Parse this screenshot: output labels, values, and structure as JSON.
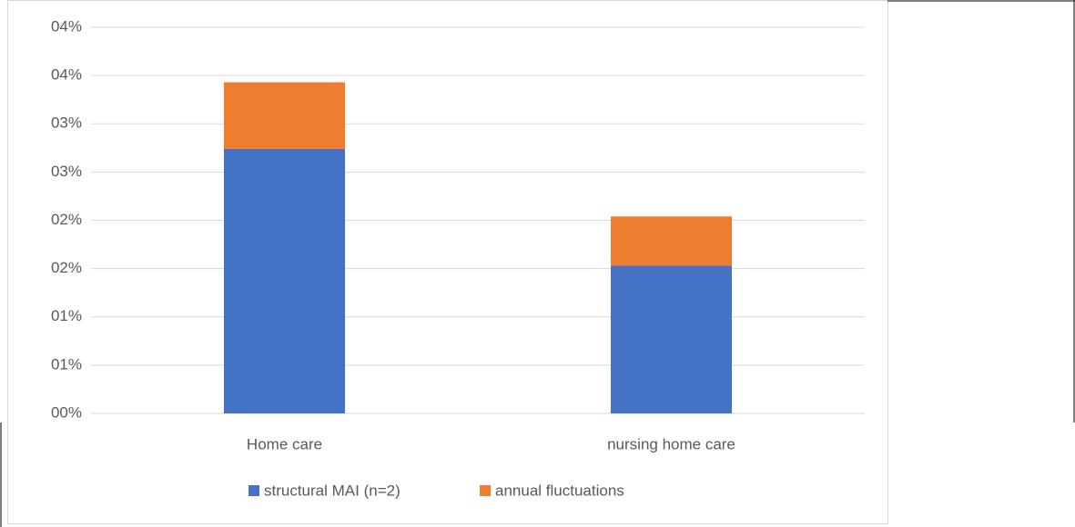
{
  "chart_data": {
    "type": "stacked_bar",
    "categories": [
      "Home care",
      "nursing home care"
    ],
    "series": [
      {
        "name": "structural MAI (n=2)",
        "color": "#4472c4",
        "values": [
          2.74,
          1.53
        ]
      },
      {
        "name": "annual fluctuations",
        "color": "#ed7d31",
        "values": [
          0.69,
          0.51
        ]
      }
    ],
    "ylim": [
      0,
      4
    ],
    "yticks": [
      {
        "value": 0,
        "label": "00%"
      },
      {
        "value": 0.5,
        "label": "01%"
      },
      {
        "value": 1,
        "label": "01%"
      },
      {
        "value": 1.5,
        "label": "02%"
      },
      {
        "value": 2,
        "label": "02%"
      },
      {
        "value": 2.5,
        "label": "03%"
      },
      {
        "value": 3,
        "label": "03%"
      },
      {
        "value": 3.5,
        "label": "04%"
      },
      {
        "value": 4,
        "label": "04%"
      }
    ],
    "grid": true,
    "legend": "bottom"
  }
}
